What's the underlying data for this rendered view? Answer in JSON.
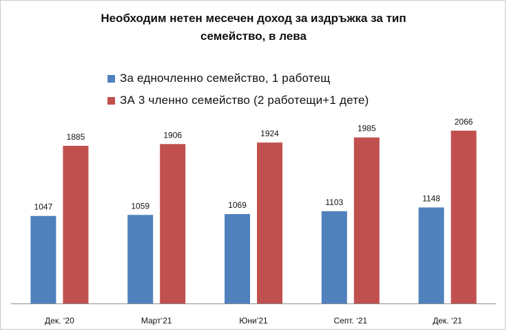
{
  "chart_data": {
    "type": "bar",
    "title_line1": "Необходим нетен месечен доход за издръжка за тип",
    "title_line2": "семейство, в лева",
    "categories": [
      "Дек. ‘20",
      "Март‘21",
      "Юни‘21",
      "Септ. ‘21",
      "Дек. ‘21"
    ],
    "series": [
      {
        "name": "За едночленно семейство, 1 работещ",
        "color": "#4f81bd",
        "values": [
          1047,
          1059,
          1069,
          1103,
          1148
        ]
      },
      {
        "name": "ЗА 3 членно семейство (2 работещи+1 дете)",
        "color": "#c0504d",
        "values": [
          1885,
          1906,
          1924,
          1985,
          2066
        ]
      }
    ],
    "ylim": [
      0,
      2600
    ],
    "grid": false,
    "legend_position": "top-left"
  }
}
